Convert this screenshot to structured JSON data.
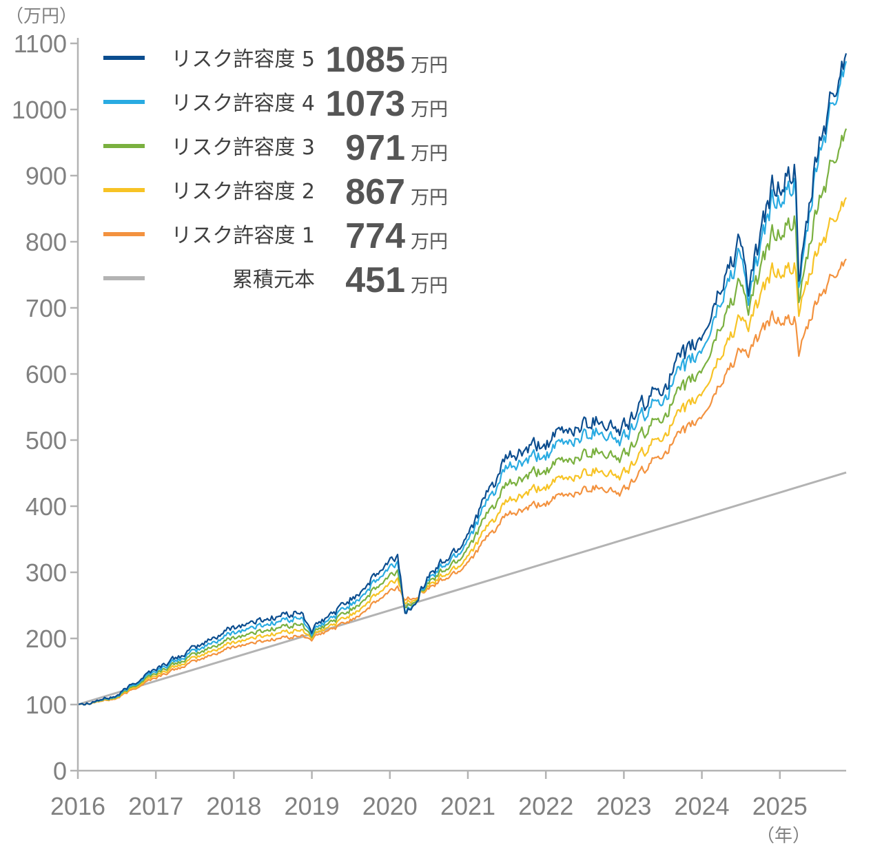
{
  "chart_data": {
    "type": "line",
    "y_unit_label": "（万円）",
    "x_unit_label": "（年）",
    "ylim": [
      0,
      1100
    ],
    "y_ticks": [
      0,
      100,
      200,
      300,
      400,
      500,
      600,
      700,
      800,
      900,
      1000,
      1100
    ],
    "xlim": [
      2016.0,
      2025.85
    ],
    "x_ticks": [
      "2016",
      "2017",
      "2018",
      "2019",
      "2020",
      "2021",
      "2022",
      "2023",
      "2024",
      "2025"
    ],
    "x": [
      2016.0,
      2016.5,
      2016.9,
      2017.5,
      2018.0,
      2018.5,
      2018.85,
      2019.0,
      2019.5,
      2020.1,
      2020.2,
      2020.5,
      2020.9,
      2021.5,
      2022.0,
      2022.3,
      2022.7,
      2022.95,
      2023.5,
      2024.0,
      2024.5,
      2024.6,
      2024.9,
      2025.2,
      2025.25,
      2025.5,
      2025.85
    ],
    "series": [
      {
        "name": "リスク許容度 5",
        "value": "1085",
        "unit": "万円",
        "color": "#0b4d8f",
        "values": [
          100,
          113,
          148,
          185,
          218,
          232,
          240,
          212,
          260,
          325,
          235,
          295,
          340,
          470,
          495,
          515,
          535,
          512,
          585,
          655,
          810,
          725,
          880,
          905,
          735,
          945,
          1085
        ]
      },
      {
        "name": "リスク許容度 4",
        "value": "1073",
        "unit": "万円",
        "color": "#29abe2",
        "values": [
          100,
          112,
          145,
          180,
          210,
          224,
          232,
          208,
          252,
          315,
          238,
          290,
          332,
          455,
          478,
          498,
          518,
          496,
          568,
          635,
          790,
          710,
          860,
          885,
          725,
          930,
          1073
        ]
      },
      {
        "name": "リスク許容度 3",
        "value": "971",
        "unit": "万円",
        "color": "#7ab03f",
        "values": [
          100,
          111,
          142,
          175,
          202,
          215,
          222,
          205,
          244,
          302,
          245,
          285,
          322,
          430,
          455,
          470,
          488,
          470,
          540,
          605,
          745,
          695,
          810,
          830,
          705,
          860,
          971
        ]
      },
      {
        "name": "リスク許容度 2",
        "value": "867",
        "unit": "万円",
        "color": "#f7c325",
        "values": [
          100,
          110,
          139,
          170,
          195,
          207,
          213,
          202,
          236,
          290,
          252,
          280,
          312,
          405,
          430,
          443,
          458,
          443,
          510,
          570,
          690,
          670,
          755,
          760,
          690,
          790,
          867
        ]
      },
      {
        "name": "リスク許容度 1",
        "value": "774",
        "unit": "万円",
        "color": "#f3923f",
        "values": [
          100,
          109,
          136,
          165,
          188,
          199,
          204,
          199,
          228,
          278,
          258,
          276,
          304,
          385,
          405,
          418,
          432,
          418,
          482,
          535,
          640,
          630,
          685,
          680,
          630,
          715,
          774
        ]
      },
      {
        "name": "累積元本",
        "value": "451",
        "unit": "万円",
        "color": "#b3b3b3",
        "values": [
          100,
          115,
          127,
          145,
          160,
          176,
          187,
          192,
          208,
          226,
          230,
          240,
          252,
          270,
          286,
          295,
          308,
          316,
          334,
          350,
          366,
          370,
          379,
          389,
          391,
          399,
          451
        ]
      }
    ]
  }
}
